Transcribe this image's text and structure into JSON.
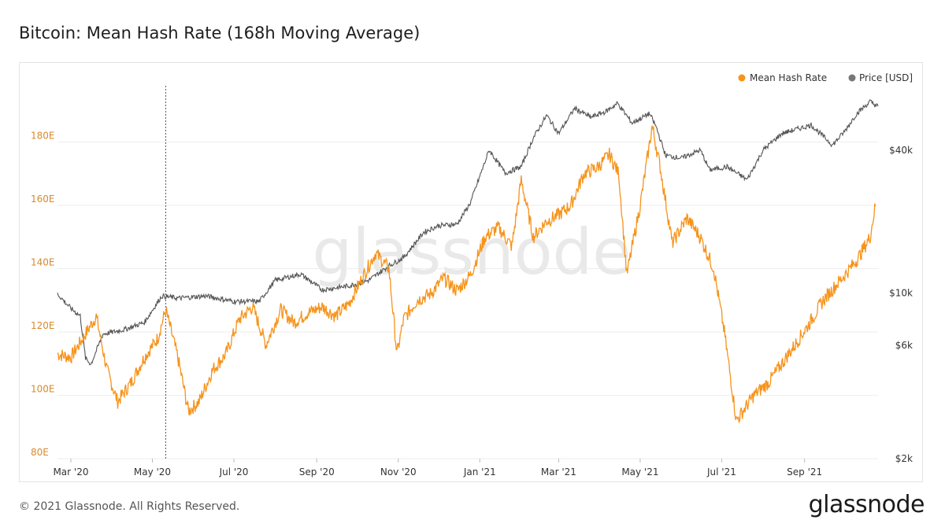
{
  "title": "Bitcoin: Mean Hash Rate (168h Moving Average)",
  "footer": {
    "copyright": "© 2021 Glassnode. All Rights Reserved.",
    "logo": "glassnode"
  },
  "watermark": "glassnode",
  "colors": {
    "hash_rate": "#f7931a",
    "price": "#555555",
    "grid": "#eeeeee",
    "left_axis": "#d9892b"
  },
  "chart_data": {
    "type": "line",
    "title": "Bitcoin: Mean Hash Rate (168h Moving Average)",
    "legend": [
      "Mean Hash Rate",
      "Price [USD]"
    ],
    "legend_position": "top-right",
    "grid": true,
    "x_tick_labels": [
      "Mar '20",
      "May '20",
      "Jul '20",
      "Sep '20",
      "Nov '20",
      "Jan '21",
      "Mar '21",
      "May '21",
      "Jul '21",
      "Sep '21"
    ],
    "x_tick_dates": [
      "2020-03-01",
      "2020-05-01",
      "2020-07-01",
      "2020-09-01",
      "2020-11-01",
      "2021-01-01",
      "2021-03-01",
      "2021-05-01",
      "2021-07-01",
      "2021-09-01"
    ],
    "x_range": [
      "2020-02-20",
      "2021-10-26"
    ],
    "marker_date": "2020-05-11",
    "y_left": {
      "label": "",
      "range": [
        80,
        200
      ],
      "ticks": [
        80,
        100,
        120,
        140,
        160,
        180
      ],
      "tick_labels": [
        "80E",
        "100E",
        "120E",
        "140E",
        "160E",
        "180E"
      ]
    },
    "y_right": {
      "label": "",
      "scale": "log",
      "range": [
        2000,
        80000
      ],
      "ticks": [
        2000,
        6000,
        10000,
        40000
      ],
      "tick_labels": [
        "$2k",
        "$6k",
        "$10k",
        "$40k"
      ]
    },
    "series": [
      {
        "name": "Mean Hash Rate",
        "axis": "left",
        "x": [
          "2020-02-20",
          "2020-03-01",
          "2020-03-10",
          "2020-03-20",
          "2020-03-28",
          "2020-04-05",
          "2020-04-15",
          "2020-04-25",
          "2020-05-05",
          "2020-05-11",
          "2020-05-20",
          "2020-05-28",
          "2020-06-05",
          "2020-06-15",
          "2020-06-25",
          "2020-07-05",
          "2020-07-15",
          "2020-07-25",
          "2020-08-05",
          "2020-08-15",
          "2020-08-25",
          "2020-09-05",
          "2020-09-15",
          "2020-09-25",
          "2020-10-05",
          "2020-10-15",
          "2020-10-25",
          "2020-10-31",
          "2020-11-05",
          "2020-11-15",
          "2020-11-25",
          "2020-12-05",
          "2020-12-15",
          "2020-12-25",
          "2021-01-05",
          "2021-01-15",
          "2021-01-25",
          "2021-02-01",
          "2021-02-10",
          "2021-02-20",
          "2021-03-01",
          "2021-03-10",
          "2021-03-20",
          "2021-03-30",
          "2021-04-08",
          "2021-04-15",
          "2021-04-21",
          "2021-05-01",
          "2021-05-10",
          "2021-05-16",
          "2021-05-25",
          "2021-06-05",
          "2021-06-15",
          "2021-06-25",
          "2021-07-03",
          "2021-07-12",
          "2021-07-25",
          "2021-08-05",
          "2021-08-15",
          "2021-08-25",
          "2021-09-05",
          "2021-09-15",
          "2021-09-25",
          "2021-10-05",
          "2021-10-12",
          "2021-10-20",
          "2021-10-24"
        ],
        "values": [
          113,
          112,
          118,
          125,
          108,
          98,
          104,
          112,
          118,
          127,
          112,
          95,
          98,
          108,
          113,
          124,
          128,
          116,
          127,
          123,
          126,
          128,
          125,
          129,
          137,
          145,
          140,
          113,
          124,
          130,
          132,
          137,
          133,
          138,
          150,
          153,
          147,
          168,
          150,
          155,
          157,
          160,
          170,
          172,
          176,
          170,
          138,
          160,
          185,
          172,
          148,
          156,
          150,
          140,
          120,
          92,
          100,
          104,
          110,
          116,
          123,
          130,
          135,
          140,
          144,
          150,
          160
        ],
        "color": "#f7931a"
      },
      {
        "name": "Price [USD]",
        "axis": "right",
        "x": [
          "2020-02-20",
          "2020-03-01",
          "2020-03-08",
          "2020-03-12",
          "2020-03-16",
          "2020-03-25",
          "2020-04-10",
          "2020-04-25",
          "2020-05-08",
          "2020-05-20",
          "2020-06-10",
          "2020-07-01",
          "2020-07-20",
          "2020-08-01",
          "2020-08-20",
          "2020-09-05",
          "2020-09-25",
          "2020-10-10",
          "2020-10-25",
          "2020-11-05",
          "2020-11-20",
          "2020-12-01",
          "2020-12-15",
          "2020-12-25",
          "2021-01-08",
          "2021-01-20",
          "2021-02-01",
          "2021-02-10",
          "2021-02-20",
          "2021-03-01",
          "2021-03-13",
          "2021-03-25",
          "2021-04-05",
          "2021-04-14",
          "2021-04-25",
          "2021-05-08",
          "2021-05-13",
          "2021-05-20",
          "2021-06-01",
          "2021-06-15",
          "2021-06-22",
          "2021-07-05",
          "2021-07-20",
          "2021-08-01",
          "2021-08-15",
          "2021-09-06",
          "2021-09-22",
          "2021-10-01",
          "2021-10-10",
          "2021-10-20",
          "2021-10-26"
        ],
        "values": [
          9900,
          8600,
          8000,
          5300,
          5000,
          6700,
          7000,
          7500,
          9700,
          9500,
          9700,
          9200,
          9200,
          11300,
          12000,
          10300,
          10700,
          11300,
          13000,
          14100,
          18000,
          19200,
          19500,
          24000,
          40000,
          32000,
          34000,
          45000,
          56000,
          47000,
          60000,
          55000,
          58000,
          63000,
          52000,
          57000,
          50000,
          38000,
          37000,
          40000,
          33000,
          34000,
          30000,
          40000,
          47000,
          51000,
          42000,
          48000,
          57000,
          64000,
          61000
        ],
        "color": "#555555"
      }
    ]
  }
}
